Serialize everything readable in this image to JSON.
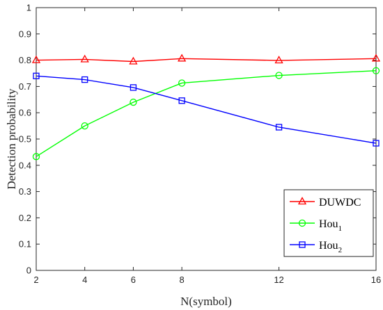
{
  "chart_data": {
    "type": "line",
    "title": "",
    "xlabel": "N(symbol)",
    "ylabel": "Detection probability",
    "xlim": [
      2,
      16
    ],
    "ylim": [
      0,
      1
    ],
    "xticks": [
      2,
      4,
      6,
      8,
      12,
      16
    ],
    "yticks": [
      0,
      0.1,
      0.2,
      0.3,
      0.4,
      0.5,
      0.6,
      0.7,
      0.8,
      0.9,
      1
    ],
    "ytick_labels": [
      "0",
      "0.1",
      "0.2",
      "0.3",
      "0.4",
      "0.5",
      "0.6",
      "0.7",
      "0.8",
      "0.9",
      "1"
    ],
    "grid": false,
    "legend": "bottom-right",
    "x": [
      2,
      4,
      6,
      8,
      12,
      16
    ],
    "series": [
      {
        "name": "DUWDC",
        "name_base": "DUWDC",
        "name_sub": "",
        "color": "#ff0000",
        "marker": "triangle",
        "values": [
          0.8,
          0.803,
          0.795,
          0.806,
          0.799,
          0.806
        ]
      },
      {
        "name": "Hou1",
        "name_base": "Hou",
        "name_sub": "1",
        "color": "#00ff00",
        "marker": "circle",
        "values": [
          0.433,
          0.55,
          0.64,
          0.713,
          0.742,
          0.76
        ]
      },
      {
        "name": "Hou2",
        "name_base": "Hou",
        "name_sub": "2",
        "color": "#0000ff",
        "marker": "square",
        "values": [
          0.74,
          0.726,
          0.696,
          0.646,
          0.545,
          0.484
        ]
      }
    ]
  }
}
